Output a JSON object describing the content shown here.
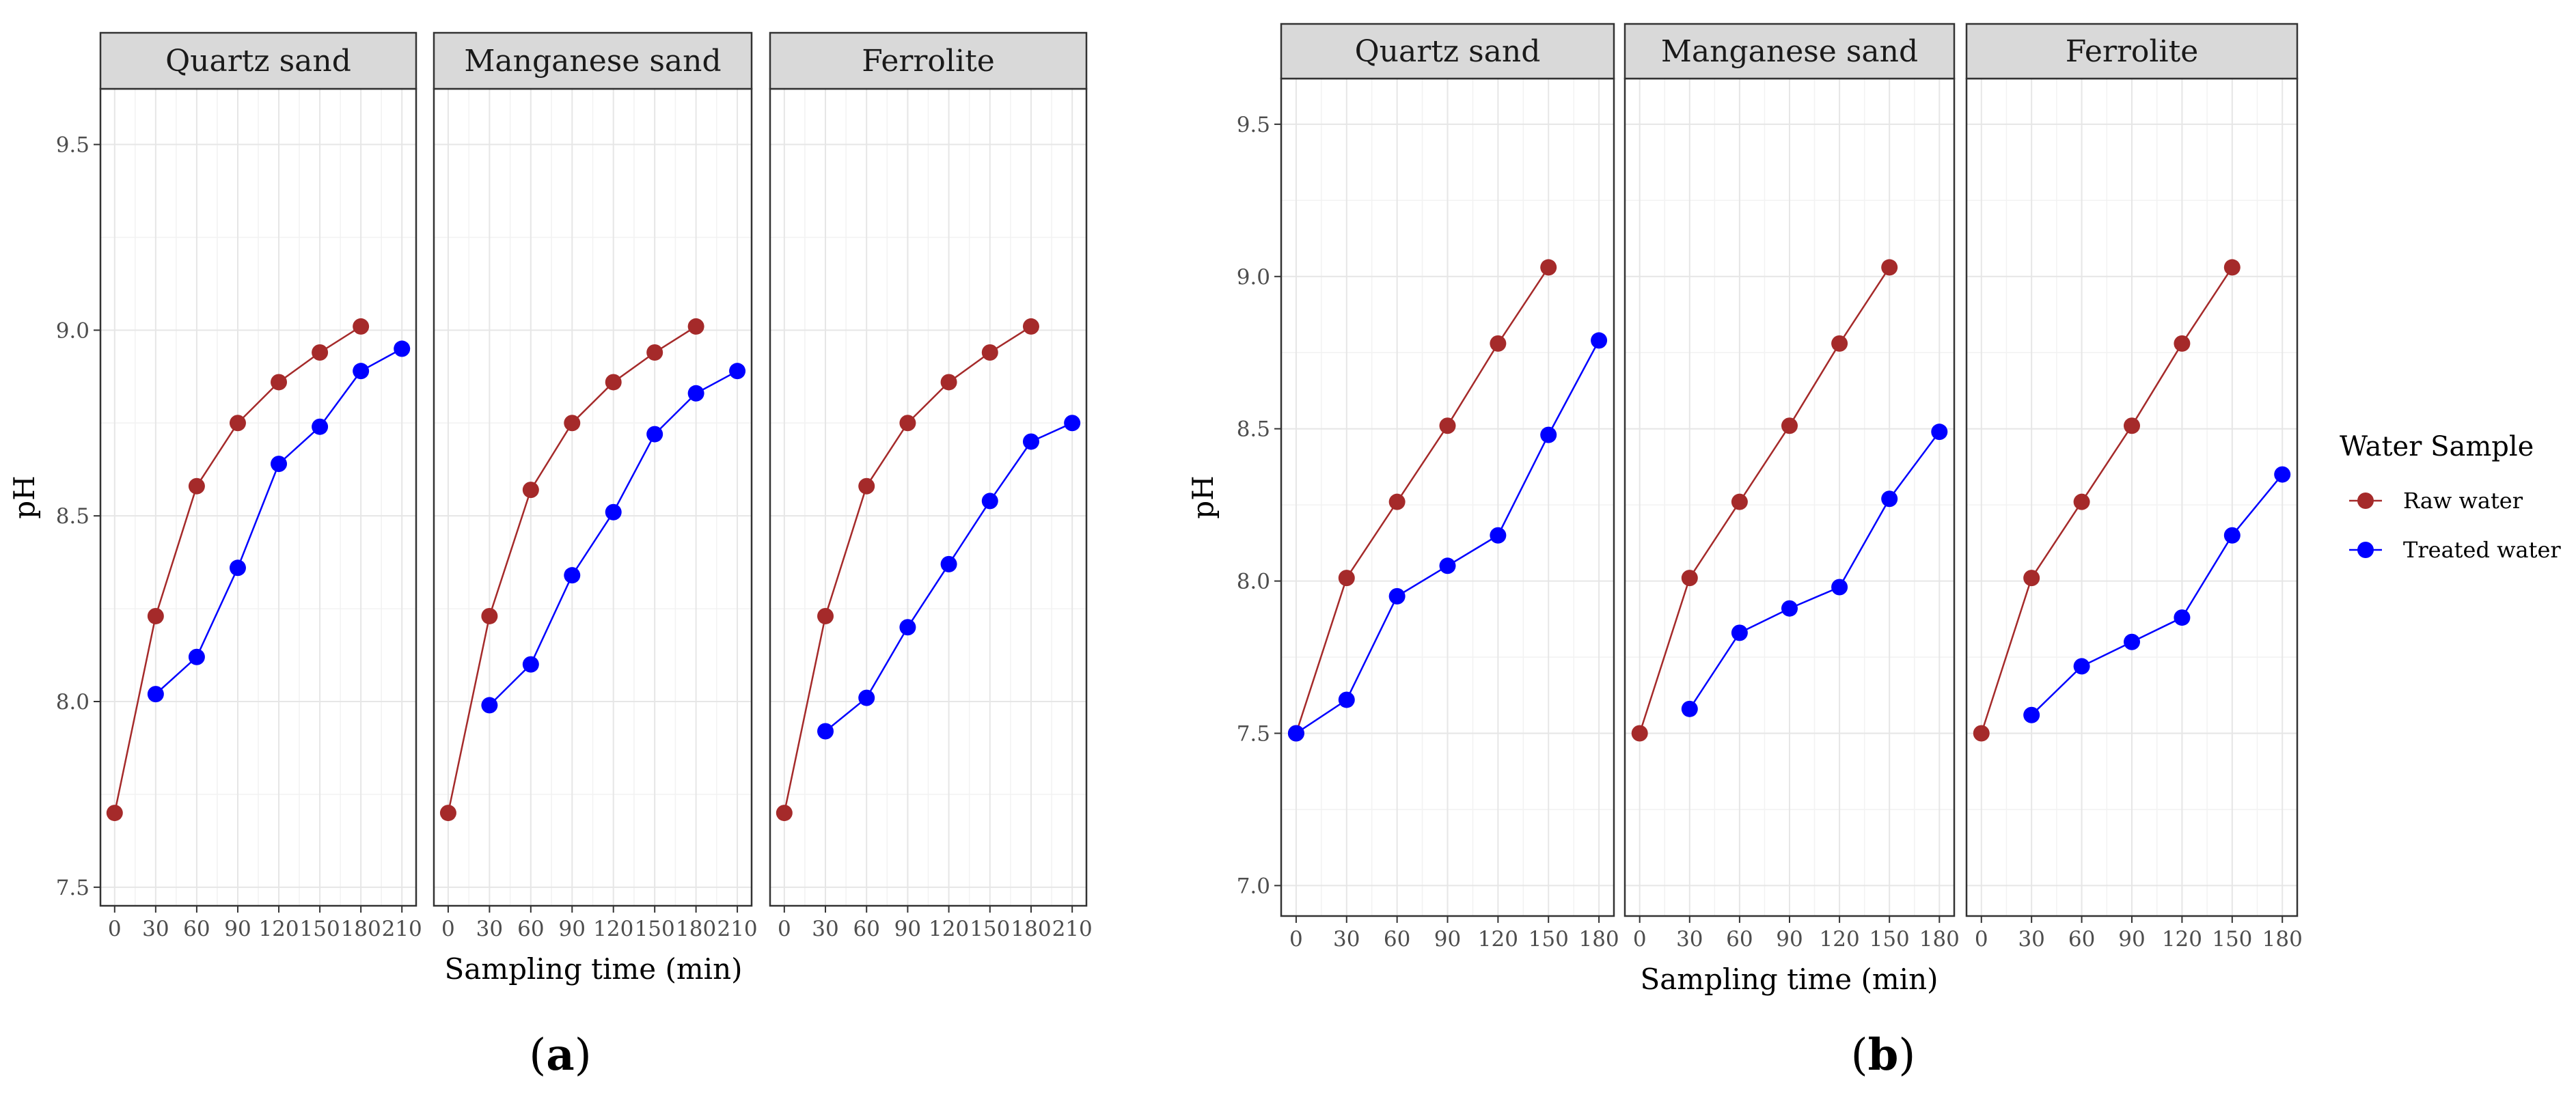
{
  "chart_data": [
    {
      "type": "line",
      "caption_letter": "a",
      "xlabel": "Sampling time (min)",
      "ylabel": "pH",
      "xlim": [
        0,
        210
      ],
      "ylim": [
        7.45,
        9.65
      ],
      "x_ticks": [
        0,
        30,
        60,
        90,
        120,
        150,
        180,
        210
      ],
      "y_ticks": [
        7.5,
        8.0,
        8.5,
        9.0,
        9.5
      ],
      "y_tick_labels": [
        "7.5",
        "8.0",
        "8.5",
        "9.0",
        "9.5"
      ],
      "grid": true,
      "colors": {
        "Raw water": "#a52a2a",
        "Treated water": "#0000ff"
      },
      "panels": [
        {
          "title": "Quartz sand",
          "series": [
            {
              "name": "Raw water",
              "x": [
                0,
                30,
                60,
                90,
                120,
                150,
                180
              ],
              "y": [
                7.7,
                8.23,
                8.58,
                8.75,
                8.86,
                8.94,
                9.01
              ]
            },
            {
              "name": "Treated water",
              "x": [
                30,
                60,
                90,
                120,
                150,
                180,
                210
              ],
              "y": [
                8.02,
                8.12,
                8.36,
                8.64,
                8.74,
                8.89,
                8.95
              ]
            }
          ]
        },
        {
          "title": "Manganese sand",
          "series": [
            {
              "name": "Raw water",
              "x": [
                0,
                30,
                60,
                90,
                120,
                150,
                180
              ],
              "y": [
                7.7,
                8.23,
                8.57,
                8.75,
                8.86,
                8.94,
                9.01
              ]
            },
            {
              "name": "Treated water",
              "x": [
                30,
                60,
                90,
                120,
                150,
                180,
                210
              ],
              "y": [
                7.99,
                8.1,
                8.34,
                8.51,
                8.72,
                8.83,
                8.89
              ]
            }
          ]
        },
        {
          "title": "Ferrolite",
          "series": [
            {
              "name": "Raw water",
              "x": [
                0,
                30,
                60,
                90,
                120,
                150,
                180
              ],
              "y": [
                7.7,
                8.23,
                8.58,
                8.75,
                8.86,
                8.94,
                9.01
              ]
            },
            {
              "name": "Treated water",
              "x": [
                30,
                60,
                90,
                120,
                150,
                180,
                210
              ],
              "y": [
                7.92,
                8.01,
                8.2,
                8.37,
                8.54,
                8.7,
                8.75
              ]
            }
          ]
        }
      ]
    },
    {
      "type": "line",
      "caption_letter": "b",
      "xlabel": "Sampling time (min)",
      "ylabel": "pH",
      "xlim": [
        0,
        180
      ],
      "ylim": [
        6.9,
        9.65
      ],
      "x_ticks": [
        0,
        30,
        60,
        90,
        120,
        150,
        180
      ],
      "y_ticks": [
        7.0,
        7.5,
        8.0,
        8.5,
        9.0,
        9.5
      ],
      "y_tick_labels": [
        "7.0",
        "7.5",
        "8.0",
        "8.5",
        "9.0",
        "9.5"
      ],
      "grid": true,
      "colors": {
        "Raw water": "#a52a2a",
        "Treated water": "#0000ff"
      },
      "legend": {
        "title": "Water Sample",
        "position": "right",
        "entries": [
          "Raw water",
          "Treated water"
        ]
      },
      "panels": [
        {
          "title": "Quartz sand",
          "series": [
            {
              "name": "Raw water",
              "x": [
                0,
                30,
                60,
                90,
                120,
                150
              ],
              "y": [
                7.5,
                8.01,
                8.26,
                8.51,
                8.78,
                9.03
              ]
            },
            {
              "name": "Treated water",
              "x": [
                0,
                30,
                60,
                90,
                120,
                150,
                180
              ],
              "y": [
                7.5,
                7.61,
                7.95,
                8.05,
                8.15,
                8.48,
                8.79
              ]
            }
          ]
        },
        {
          "title": "Manganese sand",
          "series": [
            {
              "name": "Raw water",
              "x": [
                0,
                30,
                60,
                90,
                120,
                150
              ],
              "y": [
                7.5,
                8.01,
                8.26,
                8.51,
                8.78,
                9.03
              ]
            },
            {
              "name": "Treated water",
              "x": [
                30,
                60,
                90,
                120,
                150,
                180
              ],
              "y": [
                7.58,
                7.83,
                7.91,
                7.98,
                8.27,
                8.49
              ]
            }
          ]
        },
        {
          "title": "Ferrolite",
          "series": [
            {
              "name": "Raw water",
              "x": [
                0,
                30,
                60,
                90,
                120,
                150
              ],
              "y": [
                7.5,
                8.01,
                8.26,
                8.51,
                8.78,
                9.03
              ]
            },
            {
              "name": "Treated water",
              "x": [
                30,
                60,
                90,
                120,
                150,
                180
              ],
              "y": [
                7.56,
                7.72,
                7.8,
                7.88,
                8.15,
                8.35
              ]
            }
          ]
        }
      ]
    }
  ]
}
